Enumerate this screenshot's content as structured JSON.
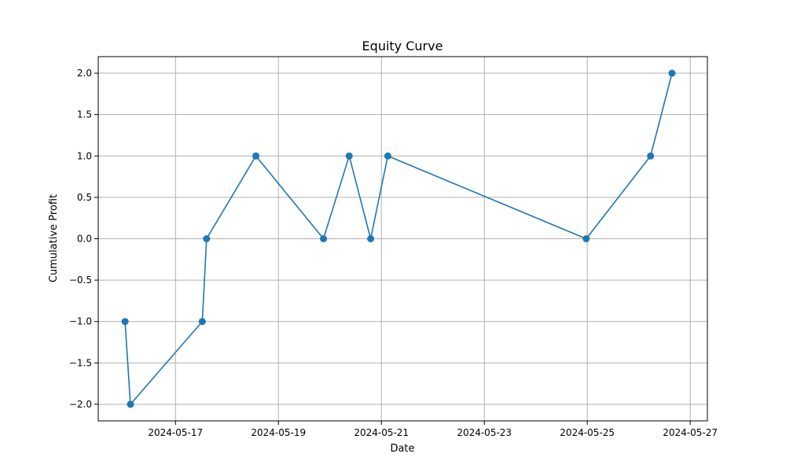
{
  "chart_data": {
    "type": "line",
    "title": "Equity Curve",
    "xlabel": "Date",
    "ylabel": "Cumulative Profit",
    "grid": true,
    "xlim": [
      "2024-05-15T12:00",
      "2024-05-27T08:00"
    ],
    "ylim": [
      -2.2,
      2.2
    ],
    "xticks": [
      "2024-05-17",
      "2024-05-19",
      "2024-05-21",
      "2024-05-23",
      "2024-05-25",
      "2024-05-27"
    ],
    "yticks": [
      -2.0,
      -1.5,
      -1.0,
      -0.5,
      0.0,
      0.5,
      1.0,
      1.5,
      2.0
    ],
    "series": [
      {
        "color": "#1f77b4",
        "marker": "circle",
        "points": [
          {
            "x": "2024-05-16T00:30",
            "y": -1
          },
          {
            "x": "2024-05-16T03:00",
            "y": -2
          },
          {
            "x": "2024-05-17T12:30",
            "y": -1
          },
          {
            "x": "2024-05-17T14:30",
            "y": 0
          },
          {
            "x": "2024-05-18T13:30",
            "y": 1
          },
          {
            "x": "2024-05-19T21:00",
            "y": 0
          },
          {
            "x": "2024-05-20T09:00",
            "y": 1
          },
          {
            "x": "2024-05-20T19:00",
            "y": 0
          },
          {
            "x": "2024-05-21T03:00",
            "y": 1
          },
          {
            "x": "2024-05-24T23:30",
            "y": 0
          },
          {
            "x": "2024-05-26T05:30",
            "y": 1
          },
          {
            "x": "2024-05-26T15:30",
            "y": 2
          }
        ]
      }
    ]
  }
}
